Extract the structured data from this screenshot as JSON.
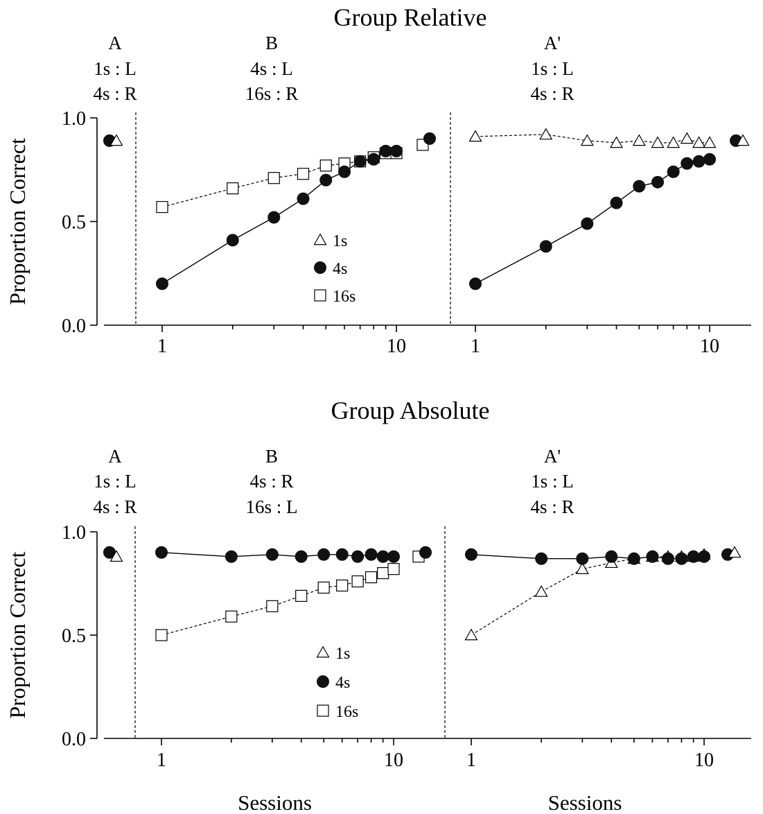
{
  "chart_data": [
    {
      "type": "line",
      "title": "Group Relative",
      "ylabel": "Proportion Correct",
      "xlabel": "",
      "yscale": "linear",
      "xscale": "log",
      "ylim": [
        0,
        1
      ],
      "yticks": [
        "0.0",
        "0.5",
        "1.0"
      ],
      "xticks": [
        "1",
        "10"
      ],
      "legend": {
        "placement": "center",
        "items": [
          "1s",
          "4s",
          "16s"
        ]
      },
      "phases": [
        {
          "name": "A",
          "rules": [
            "1s : L",
            "4s : R"
          ]
        },
        {
          "name": "B",
          "rules": [
            "4s : L",
            "16s : R"
          ]
        },
        {
          "name": "A'",
          "rules": [
            "1s : L",
            "4s : R"
          ]
        }
      ],
      "baseline_A": [
        {
          "name": "4s",
          "value": 0.89
        },
        {
          "name": "1s",
          "value": 0.89
        }
      ],
      "phase_B": {
        "x": [
          1,
          2,
          3,
          4,
          5,
          6,
          7,
          8,
          9,
          10
        ],
        "series": [
          {
            "name": "4s",
            "values": [
              0.2,
              0.41,
              0.52,
              0.61,
              0.7,
              0.74,
              0.79,
              0.8,
              0.84,
              0.84
            ]
          },
          {
            "name": "16s",
            "values": [
              0.57,
              0.66,
              0.71,
              0.73,
              0.77,
              0.78,
              0.79,
              0.81,
              0.83,
              0.83
            ]
          }
        ],
        "end": [
          {
            "name": "16s",
            "value": 0.87
          },
          {
            "name": "4s",
            "value": 0.9
          }
        ]
      },
      "phase_A_prime": {
        "x": [
          1,
          2,
          3,
          4,
          5,
          6,
          7,
          8,
          9,
          10
        ],
        "series": [
          {
            "name": "1s",
            "values": [
              0.91,
              0.92,
              0.89,
              0.88,
              0.89,
              0.88,
              0.88,
              0.9,
              0.88,
              0.88
            ]
          },
          {
            "name": "4s",
            "values": [
              0.2,
              0.38,
              0.49,
              0.59,
              0.67,
              0.69,
              0.74,
              0.78,
              0.79,
              0.8
            ]
          }
        ],
        "end": [
          {
            "name": "4s",
            "value": 0.89
          },
          {
            "name": "1s",
            "value": 0.89
          }
        ]
      }
    },
    {
      "type": "line",
      "title": "Group Absolute",
      "ylabel": "Proportion Correct",
      "xlabel": "Sessions",
      "yscale": "linear",
      "xscale": "log",
      "ylim": [
        0,
        1
      ],
      "yticks": [
        "0.0",
        "0.5",
        "1.0"
      ],
      "xticks": [
        "1",
        "10"
      ],
      "legend": {
        "placement": "center",
        "items": [
          "1s",
          "4s",
          "16s"
        ]
      },
      "phases": [
        {
          "name": "A",
          "rules": [
            "1s : L",
            "4s : R"
          ]
        },
        {
          "name": "B",
          "rules": [
            "4s : R",
            "16s : L"
          ]
        },
        {
          "name": "A'",
          "rules": [
            "1s : L",
            "4s : R"
          ]
        }
      ],
      "baseline_A": [
        {
          "name": "4s",
          "value": 0.9
        },
        {
          "name": "1s",
          "value": 0.88
        }
      ],
      "phase_B": {
        "x": [
          1,
          2,
          3,
          4,
          5,
          6,
          7,
          8,
          9,
          10
        ],
        "series": [
          {
            "name": "4s",
            "values": [
              0.9,
              0.88,
              0.89,
              0.88,
              0.89,
              0.89,
              0.88,
              0.89,
              0.88,
              0.88
            ]
          },
          {
            "name": "16s",
            "values": [
              0.5,
              0.59,
              0.64,
              0.69,
              0.73,
              0.74,
              0.76,
              0.78,
              0.8,
              0.82
            ]
          }
        ],
        "end": [
          {
            "name": "16s",
            "value": 0.88
          },
          {
            "name": "4s",
            "value": 0.9
          }
        ]
      },
      "phase_A_prime": {
        "x": [
          1,
          2,
          3,
          4,
          5,
          6,
          7,
          8,
          9,
          10
        ],
        "series": [
          {
            "name": "1s",
            "values": [
              0.5,
              0.71,
              0.82,
              0.85,
              0.87,
              0.88,
              0.88,
              0.88,
              0.88,
              0.89
            ]
          },
          {
            "name": "4s",
            "values": [
              0.89,
              0.87,
              0.87,
              0.88,
              0.87,
              0.88,
              0.87,
              0.87,
              0.88,
              0.88
            ]
          }
        ],
        "end": [
          {
            "name": "4s",
            "value": 0.89
          },
          {
            "name": "1s",
            "value": 0.9
          }
        ]
      }
    }
  ]
}
